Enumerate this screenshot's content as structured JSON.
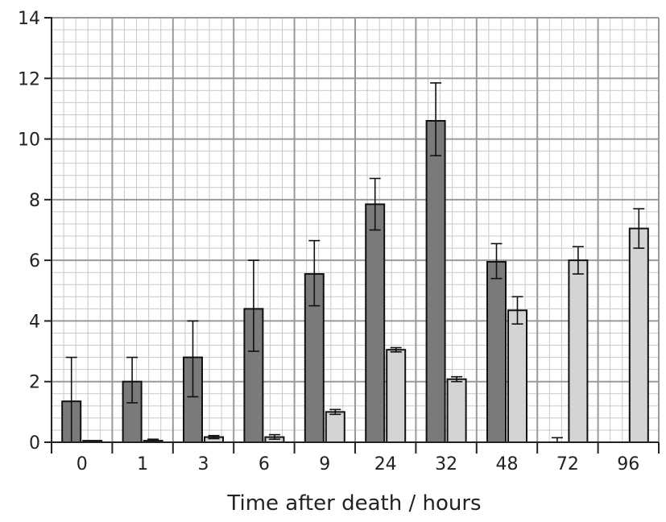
{
  "chart_data": {
    "type": "bar",
    "title": "",
    "xlabel": "Time after death / hours",
    "ylabel": "",
    "categories": [
      "0",
      "1",
      "3",
      "6",
      "9",
      "24",
      "32",
      "48",
      "72",
      "96"
    ],
    "ylim": [
      0,
      14
    ],
    "yticks": [
      "0",
      "2",
      "4",
      "6",
      "8",
      "10",
      "12",
      "14"
    ],
    "grid": true,
    "series": [
      {
        "values": [
          1.35,
          2.0,
          2.8,
          4.4,
          5.55,
          7.85,
          10.6,
          5.95,
          0.0,
          null
        ],
        "err_low": [
          1.35,
          0.7,
          1.3,
          1.4,
          1.05,
          0.85,
          1.15,
          0.55,
          0.0,
          null
        ],
        "err_high": [
          1.45,
          0.8,
          1.2,
          1.6,
          1.1,
          0.85,
          1.25,
          0.6,
          0.15,
          null
        ],
        "color": "#7a7a7a"
      },
      {
        "values": [
          0.05,
          0.05,
          0.17,
          0.17,
          1.0,
          3.05,
          2.08,
          4.35,
          6.0,
          7.05
        ],
        "err_low": [
          0.0,
          0.0,
          0.05,
          0.07,
          0.08,
          0.07,
          0.08,
          0.45,
          0.45,
          0.65
        ],
        "err_high": [
          0.0,
          0.05,
          0.05,
          0.08,
          0.08,
          0.07,
          0.08,
          0.45,
          0.45,
          0.65
        ],
        "color": "#d4d4d4"
      }
    ]
  },
  "colors": {
    "grid_minor": "#c9c9c9",
    "grid_major": "#9a9a9a",
    "axis": "#222222"
  }
}
